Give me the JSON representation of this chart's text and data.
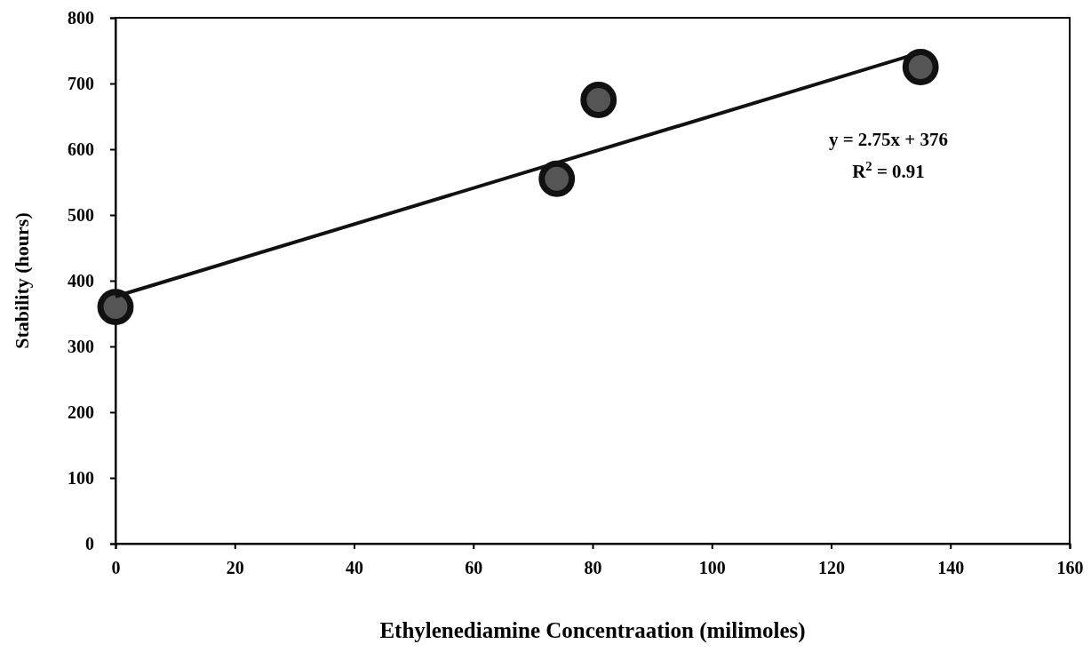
{
  "chart_data": {
    "type": "scatter",
    "xlabel": "Ethylenediamine Concentraation (milimoles)",
    "ylabel": "Stability (hours)",
    "xlim": [
      0,
      160
    ],
    "xticks": [
      0,
      20,
      40,
      60,
      80,
      100,
      120,
      140,
      160
    ],
    "ylim": [
      0,
      800
    ],
    "yticks": [
      0,
      100,
      200,
      300,
      400,
      500,
      600,
      700,
      800
    ],
    "series": [
      {
        "marker": "circle",
        "color": "#111111",
        "x": [
          0,
          74,
          81,
          135
        ],
        "values": [
          360,
          555,
          675,
          725
        ]
      },
      {
        "type": "line",
        "marker": "none",
        "color": "#111111",
        "x": [
          0,
          135
        ],
        "values": [
          376,
          747
        ]
      }
    ],
    "annotations": [
      "y = 2.75x + 376",
      "R$^{2}$ = 0.91"
    ]
  }
}
